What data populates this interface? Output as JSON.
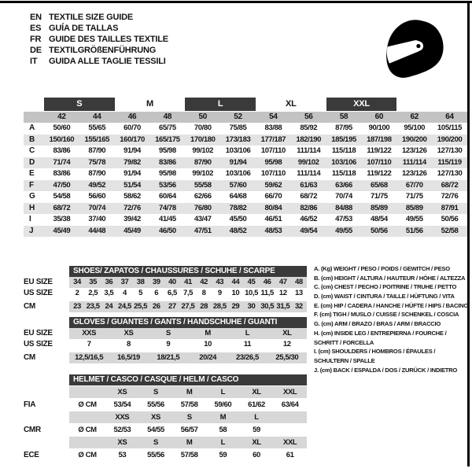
{
  "languages": [
    {
      "code": "EN",
      "text": "TEXTILE SIZE GUIDE"
    },
    {
      "code": "ES",
      "text": "GUÍA DE TALLAS"
    },
    {
      "code": "FR",
      "text": "GUIDE DES TAILLES TEXTILE"
    },
    {
      "code": "DE",
      "text": "TEXTILGRÖßENFÜHRUNG"
    },
    {
      "code": "IT",
      "text": "GUIDA ALLE TAGLIE TESSILI"
    }
  ],
  "icons": {
    "helmet": "racing-helmet"
  },
  "colors": {
    "dark_bar": "#3a3a3a",
    "size_band": "#c3c3c3",
    "alt_row": "#e3e3e3",
    "bottom_row_gray": "#d7d7d7"
  },
  "main_table": {
    "groups": [
      {
        "label": "",
        "span": 1,
        "dark": false
      },
      {
        "label": "S",
        "span": 2,
        "dark": true
      },
      {
        "label": "M",
        "span": 2,
        "dark": false
      },
      {
        "label": "L",
        "span": 2,
        "dark": true
      },
      {
        "label": "XL",
        "span": 2,
        "dark": false
      },
      {
        "label": "XXL",
        "span": 2,
        "dark": true
      },
      {
        "label": "",
        "span": 1,
        "dark": false
      }
    ],
    "sizes": [
      "42",
      "44",
      "46",
      "48",
      "50",
      "52",
      "54",
      "56",
      "58",
      "60",
      "62",
      "64"
    ],
    "rows": [
      {
        "key": "A",
        "values": [
          "50/60",
          "55/65",
          "60/70",
          "65/75",
          "70/80",
          "75/85",
          "83/88",
          "85/92",
          "87/95",
          "90/100",
          "95/100",
          "105/115"
        ]
      },
      {
        "key": "B",
        "values": [
          "150/160",
          "155/165",
          "160/170",
          "165/175",
          "170/180",
          "173/183",
          "177/187",
          "182/190",
          "185/195",
          "187/198",
          "190/200",
          "190/200"
        ]
      },
      {
        "key": "C",
        "values": [
          "83/86",
          "87/90",
          "91/94",
          "95/98",
          "99/102",
          "103/106",
          "107/110",
          "111/114",
          "115/118",
          "119/122",
          "123/126",
          "127/130"
        ]
      },
      {
        "key": "D",
        "values": [
          "71/74",
          "75/78",
          "79/82",
          "83/86",
          "87/90",
          "91/94",
          "95/98",
          "99/102",
          "103/106",
          "107/110",
          "111/114",
          "115/119"
        ]
      },
      {
        "key": "E",
        "values": [
          "83/86",
          "87/90",
          "91/94",
          "95/98",
          "99/102",
          "103/106",
          "107/110",
          "111/114",
          "115/118",
          "119/122",
          "123/126",
          "127/130"
        ]
      },
      {
        "key": "F",
        "values": [
          "47/50",
          "49/52",
          "51/54",
          "53/56",
          "55/58",
          "57/60",
          "59/62",
          "61/63",
          "63/66",
          "65/68",
          "67/70",
          "68/72"
        ]
      },
      {
        "key": "G",
        "values": [
          "54/58",
          "56/60",
          "58/62",
          "60/64",
          "62/66",
          "64/68",
          "66/70",
          "68/72",
          "70/74",
          "71/75",
          "71/75",
          "72/76"
        ]
      },
      {
        "key": "H",
        "values": [
          "68/72",
          "70/74",
          "72/76",
          "74/78",
          "76/80",
          "78/82",
          "80/84",
          "82/86",
          "84/88",
          "85/89",
          "85/89",
          "87/91"
        ]
      },
      {
        "key": "I",
        "values": [
          "35/38",
          "37/40",
          "39/42",
          "41/45",
          "43/47",
          "45/50",
          "46/51",
          "46/52",
          "47/53",
          "48/54",
          "49/55",
          "50/56"
        ]
      },
      {
        "key": "J",
        "values": [
          "45/49",
          "44/48",
          "45/49",
          "46/50",
          "47/51",
          "48/52",
          "48/53",
          "49/54",
          "49/55",
          "50/56",
          "51/56",
          "52/58"
        ]
      }
    ]
  },
  "shoes": {
    "title": "SHOES/ ZAPATOS / CHAUSSURES / SCHUHE / SCARPE",
    "rows": [
      {
        "label": "EU SIZE",
        "gray": true,
        "values": [
          "34",
          "35",
          "36",
          "37",
          "38",
          "39",
          "40",
          "41",
          "42",
          "43",
          "44",
          "45",
          "46",
          "47",
          "48"
        ]
      },
      {
        "label": "US SIZE",
        "gray": false,
        "values": [
          "2",
          "2,5",
          "3,5",
          "4",
          "5",
          "6",
          "6,5",
          "7,5",
          "8",
          "9",
          "10",
          "10,5",
          "11,5",
          "12",
          "13"
        ]
      },
      {
        "label": "CM",
        "gray": true,
        "values": [
          "23",
          "23,5",
          "24",
          "24,5",
          "25,5",
          "26",
          "27",
          "27,5",
          "28",
          "28,5",
          "29",
          "30",
          "30,5",
          "31,5",
          "32"
        ]
      }
    ]
  },
  "gloves": {
    "title": "GLOVES / GUANTES / GANTS / HANDSCHUHE / GUANTI",
    "rows": [
      {
        "label": "EU SIZE",
        "gray": true,
        "values": [
          "XXS",
          "XS",
          "S",
          "M",
          "L",
          "XL"
        ]
      },
      {
        "label": "US SIZE",
        "gray": false,
        "values": [
          "7",
          "8",
          "9",
          "10",
          "11",
          "12"
        ]
      },
      {
        "label": "CM",
        "gray": true,
        "values": [
          "12,5/16,5",
          "16,5/19",
          "18/21,5",
          "20/24",
          "23/26,5",
          "25,5/30"
        ]
      }
    ]
  },
  "helmet": {
    "title": "HELMET / CASCO / CASQUE / HELM / CASCO",
    "prefix": "Ø CM",
    "sections": [
      {
        "standard": "FIA",
        "sizes": [
          "XS",
          "S",
          "M",
          "L",
          "XL",
          "XXL"
        ],
        "values": [
          "53/54",
          "55/56",
          "57/58",
          "59/60",
          "61/62",
          "63/64"
        ]
      },
      {
        "standard": "CMR",
        "sizes": [
          "XXS",
          "XS",
          "S",
          "M",
          "L",
          ""
        ],
        "values": [
          "52/53",
          "54/55",
          "56/57",
          "58",
          "59",
          ""
        ]
      },
      {
        "standard": "ECE",
        "sizes": [
          "XS",
          "S",
          "M",
          "L",
          "XL",
          "XXL"
        ],
        "values": [
          "53",
          "55/56",
          "57/58",
          "59",
          "60",
          "61"
        ]
      }
    ]
  },
  "legend": [
    {
      "lines": [
        "A. (Kg) WEIGHT / PESO / POIDS / GEWITCH / PESO"
      ]
    },
    {
      "lines": [
        "B. (cm) HEIGHT / ALTURA / HAUTEUR / HÖHE / ALTEZZA"
      ]
    },
    {
      "lines": [
        "C. (cm) CHEST / PECHO / POITRINE / TRUHE / PETTO"
      ]
    },
    {
      "lines": [
        "D. (cm) WAIST / CINTURA / TAILLE / HÜFTUNG / VITA"
      ]
    },
    {
      "lines": [
        "E. (cm) HIP / CADERA / HANCHE / HÜFTE / HIPS / BACINO"
      ]
    },
    {
      "lines": [
        "F. (cm) TIGH / MUSLO / CUISSE / SCHENKEL / COSCIA"
      ]
    },
    {
      "lines": [
        "G. (cm) ARM / BRAZO / BRAS / ARM / BRACCIO"
      ]
    },
    {
      "lines": [
        "H. (cm) INSIDE LEG / ENTREPIERNA / FOURCHE /",
        "SCHRITT / FORCELLA"
      ]
    },
    {
      "lines": [
        "I. (cm) SHOULDERS / HOMBROS / ÉPAULES /",
        "SCHULTERN / SPALLE"
      ]
    },
    {
      "lines": [
        "J. (cm) BACK / ESPALDA / DOS / ZURÜCK / INDIETRO"
      ]
    }
  ]
}
